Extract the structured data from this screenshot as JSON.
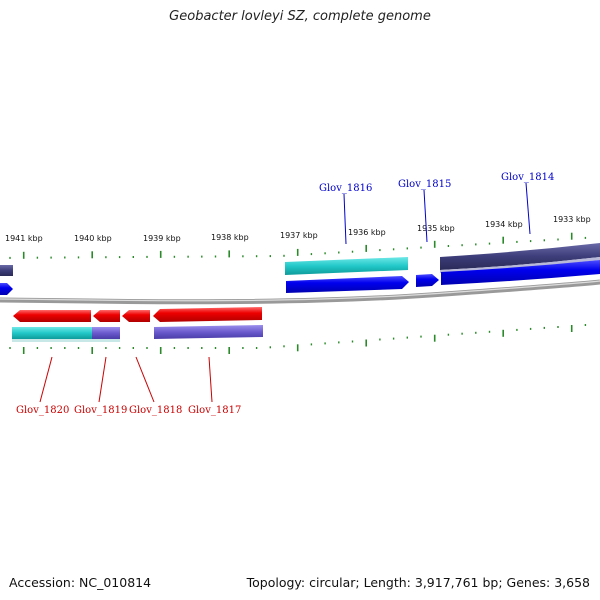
{
  "title": "Geobacter lovleyi SZ, complete genome",
  "footer": {
    "accession": "Accession: NC_010814",
    "summary": "Topology: circular; Length: 3,917,761 bp; Genes: 3,658"
  },
  "kbp_labels": [
    "1941 kbp",
    "1940 kbp",
    "1939 kbp",
    "1938 kbp",
    "1937 kbp",
    "1936 kbp",
    "1935 kbp",
    "1934 kbp",
    "1933 kbp"
  ],
  "genes_top": [
    "Glov_1816",
    "Glov_1815",
    "Glov_1814"
  ],
  "genes_bottom": [
    "Glov_1820",
    "Glov_1819",
    "Glov_1818",
    "Glov_1817"
  ],
  "colors": {
    "forward_gene": "#0000ee",
    "reverse_gene": "#ee0000",
    "cog_cyan": "#22c8c8",
    "cog_purple": "#6a5acd",
    "cog_dark": "#3d3d7a",
    "tick": "#2a8a2a",
    "backbone": "#888888"
  }
}
